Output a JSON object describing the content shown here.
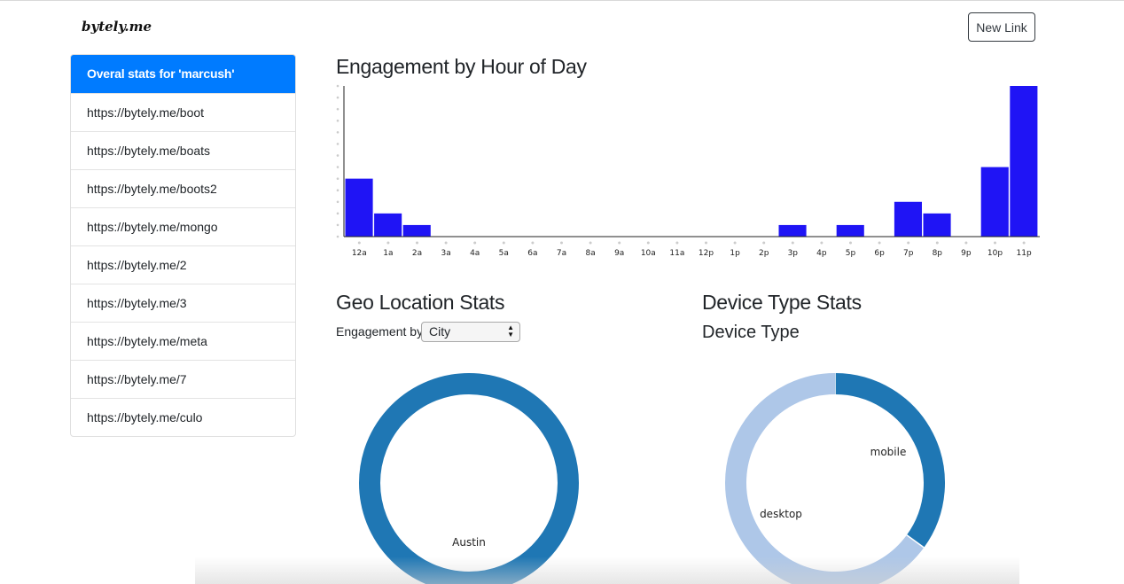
{
  "header": {
    "brand": "bytely.me",
    "new_link_label": "New Link"
  },
  "sidebar": {
    "items": [
      {
        "label": "Overal stats for 'marcush'",
        "active": true
      },
      {
        "label": "https://bytely.me/boot"
      },
      {
        "label": "https://bytely.me/boats"
      },
      {
        "label": "https://bytely.me/boots2"
      },
      {
        "label": "https://bytely.me/mongo"
      },
      {
        "label": "https://bytely.me/2"
      },
      {
        "label": "https://bytely.me/3"
      },
      {
        "label": "https://bytely.me/meta"
      },
      {
        "label": "https://bytely.me/7"
      },
      {
        "label": "https://bytely.me/culo"
      }
    ]
  },
  "engagement": {
    "title": "Engagement by Hour of Day"
  },
  "geo": {
    "title": "Geo Location Stats",
    "engagement_by_label": "Engagement by",
    "selected_option": "City"
  },
  "device": {
    "title": "Device Type Stats",
    "subtitle": "Device Type"
  },
  "colors": {
    "bar": "#1f14f5",
    "primary": "#007bff",
    "donut_dark": "#1f77b4",
    "donut_light": "#aec7e8"
  },
  "chart_data": [
    {
      "type": "bar",
      "title": "Engagement by Hour of Day",
      "categories": [
        "12a",
        "1a",
        "2a",
        "3a",
        "4a",
        "5a",
        "6a",
        "7a",
        "8a",
        "9a",
        "10a",
        "11a",
        "12p",
        "1p",
        "2p",
        "3p",
        "4p",
        "5p",
        "6p",
        "7p",
        "8p",
        "9p",
        "10p",
        "11p"
      ],
      "values": [
        5,
        2,
        1,
        0,
        0,
        0,
        0,
        0,
        0,
        0,
        0,
        0,
        0,
        0,
        0,
        1,
        0,
        1,
        0,
        3,
        2,
        0,
        6,
        13
      ],
      "ylim": [
        0,
        13
      ]
    },
    {
      "type": "pie",
      "categories": [
        "Austin"
      ],
      "values": [
        1
      ]
    },
    {
      "type": "pie",
      "categories": [
        "mobile",
        "desktop"
      ],
      "values": [
        35,
        65
      ]
    }
  ]
}
